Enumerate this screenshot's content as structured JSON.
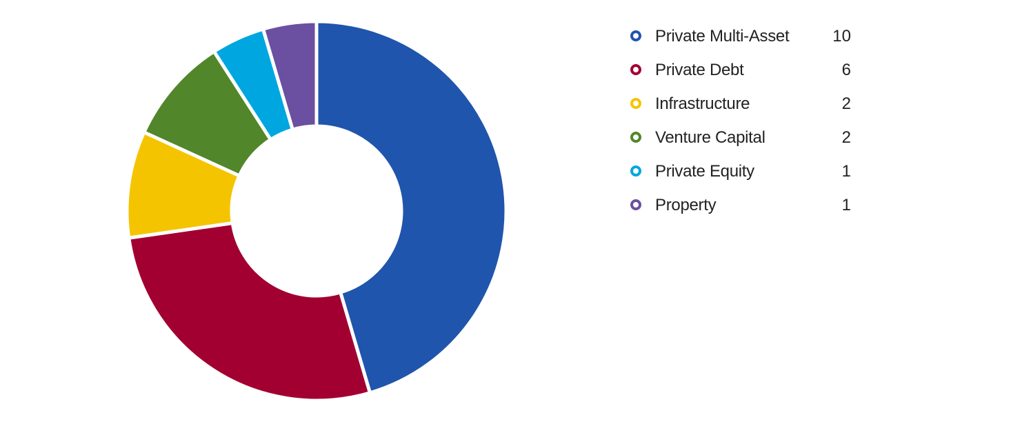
{
  "chart_data": {
    "type": "pie",
    "donut": true,
    "categories": [
      "Private Multi-Asset",
      "Private Debt",
      "Infrastructure",
      "Venture Capital",
      "Private Equity",
      "Property"
    ],
    "values": [
      10,
      6,
      2,
      2,
      1,
      1
    ],
    "colors": [
      "#2055ad",
      "#a20031",
      "#f5c400",
      "#52862a",
      "#00a6df",
      "#6b4fa0"
    ],
    "legend_position": "right",
    "title": ""
  },
  "legend": {
    "items": [
      {
        "label": "Private Multi-Asset",
        "value": "10",
        "color": "#2055ad"
      },
      {
        "label": "Private Debt",
        "value": "6",
        "color": "#a20031"
      },
      {
        "label": "Infrastructure",
        "value": "2",
        "color": "#f5c400"
      },
      {
        "label": "Venture Capital",
        "value": "2",
        "color": "#52862a"
      },
      {
        "label": "Private Equity",
        "value": "1",
        "color": "#00a6df"
      },
      {
        "label": "Property",
        "value": "1",
        "color": "#6b4fa0"
      }
    ]
  }
}
